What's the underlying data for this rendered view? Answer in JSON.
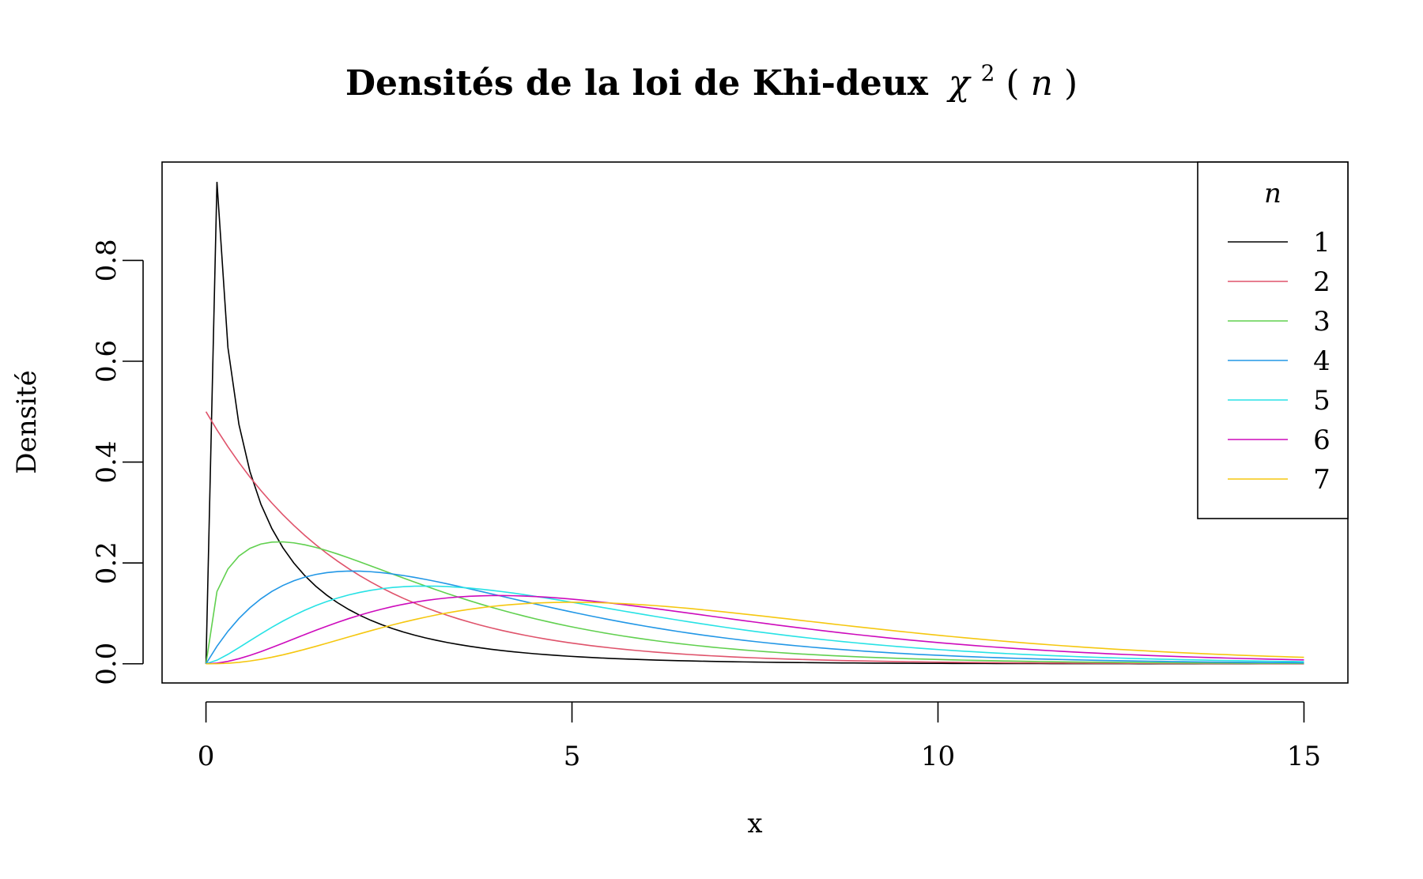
{
  "chart_data": {
    "type": "line",
    "title_main": "Densités de la loi de Khi-deux",
    "title_math": "χ",
    "title_sup": "2",
    "title_paren_open": "(",
    "title_var": "n",
    "title_paren_close": ")",
    "xlabel": "x",
    "ylabel": "Densité",
    "xlim": [
      -0.6,
      15.6
    ],
    "ylim": [
      -0.038,
      0.995
    ],
    "x_ticks": [
      0,
      5,
      10,
      15
    ],
    "x_tick_labels": [
      "0",
      "5",
      "10",
      "15"
    ],
    "y_ticks": [
      0.0,
      0.2,
      0.4,
      0.6,
      0.8
    ],
    "y_tick_labels": [
      "0.0",
      "0.2",
      "0.4",
      "0.6",
      "0.8"
    ],
    "grid": false,
    "legend": {
      "position": "top-right",
      "title": "n",
      "entries": [
        "1",
        "2",
        "3",
        "4",
        "5",
        "6",
        "7"
      ]
    },
    "series": [
      {
        "name": "1",
        "color": "#000000",
        "df": 1
      },
      {
        "name": "2",
        "color": "#DF536B",
        "df": 2
      },
      {
        "name": "3",
        "color": "#61D04F",
        "df": 3
      },
      {
        "name": "4",
        "color": "#2297E6",
        "df": 4
      },
      {
        "name": "5",
        "color": "#28E2E5",
        "df": 5
      },
      {
        "name": "6",
        "color": "#CD0BBC",
        "df": 6
      },
      {
        "name": "7",
        "color": "#F5C710",
        "df": 7
      }
    ],
    "x": [
      0,
      0.15,
      0.3,
      0.45,
      0.6,
      0.75,
      0.9,
      1.05,
      1.2,
      1.35,
      1.5,
      1.65,
      1.8,
      1.95,
      2.1,
      2.25,
      2.4,
      2.55,
      2.7,
      2.85,
      3,
      3.15,
      3.3,
      3.45,
      3.6,
      3.75,
      3.9,
      4.05,
      4.2,
      4.35,
      4.5,
      4.65,
      4.8,
      4.95,
      5.1,
      5.25,
      5.4,
      5.55,
      5.7,
      5.85,
      6,
      6.15,
      6.3,
      6.45,
      6.6,
      6.75,
      6.9,
      7.05,
      7.2,
      7.35,
      7.5,
      7.65,
      7.8,
      7.95,
      8.1,
      8.25,
      8.4,
      8.55,
      8.7,
      8.85,
      9,
      9.15,
      9.3,
      9.45,
      9.6,
      9.75,
      9.9,
      10.05,
      10.2,
      10.35,
      10.5,
      10.65,
      10.8,
      10.95,
      11.1,
      11.25,
      11.4,
      11.55,
      11.7,
      11.85,
      12,
      12.15,
      12.3,
      12.45,
      12.6,
      12.75,
      12.9,
      13.05,
      13.2,
      13.35,
      13.5,
      13.65,
      13.8,
      13.95,
      14.1,
      14.25,
      14.4,
      14.55,
      14.7,
      14.85,
      15
    ]
  }
}
